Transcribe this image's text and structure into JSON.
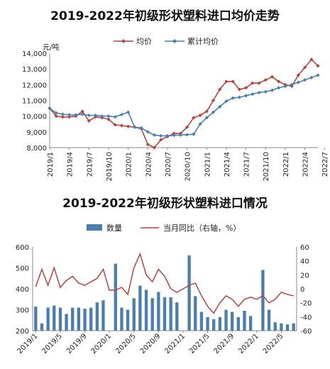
{
  "chart_data": [
    {
      "type": "line",
      "title": "2019-2022年初级形状塑料进口均价走势",
      "ylabel": "元/吨",
      "ylim": [
        8000,
        14000
      ],
      "yticks": [
        "8,000",
        "9,000",
        "10,000",
        "11,000",
        "12,000",
        "13,000",
        "14,000"
      ],
      "xtick_labels": [
        "2019/1",
        "2019/4",
        "2019/7",
        "2019/10",
        "2020/1",
        "2020/4",
        "2020/7",
        "2020/10",
        "2021/1",
        "2021/4",
        "2021/7",
        "2021/10",
        "2022/1",
        "2022/4",
        "2022/7"
      ],
      "series": [
        {
          "name": "均价",
          "color": "#b5443e",
          "values": [
            10500,
            10000,
            9950,
            9950,
            10000,
            10300,
            9700,
            9950,
            9900,
            9800,
            9450,
            9400,
            9350,
            9300,
            9200,
            8200,
            8000,
            8500,
            8700,
            8900,
            8900,
            9300,
            9900,
            10050,
            10300,
            11000,
            11700,
            12200,
            12200,
            11700,
            11800,
            12100,
            12100,
            12300,
            12500,
            12200,
            12000,
            11900,
            12600,
            13100,
            13600,
            13200
          ]
        },
        {
          "name": "累计均价",
          "color": "#4a7eb0",
          "values": [
            10500,
            10200,
            10120,
            10080,
            10080,
            10120,
            10050,
            10050,
            10000,
            10000,
            9950,
            10100,
            10250,
            9300,
            9250,
            9000,
            8800,
            8750,
            8750,
            8780,
            8800,
            8820,
            8850,
            9500,
            9900,
            10250,
            10600,
            10950,
            11150,
            11200,
            11300,
            11400,
            11500,
            11550,
            11650,
            11800,
            11900,
            12000,
            12150,
            12300,
            12450,
            12600
          ]
        }
      ]
    },
    {
      "type": "bar",
      "title": "2019-2022年初级形状塑料进口情况",
      "ylim": [
        200,
        600
      ],
      "yticks": [
        "200",
        "300",
        "400",
        "500",
        "600"
      ],
      "y2lim": [
        -60,
        60
      ],
      "y2ticks": [
        "60",
        "40",
        "20",
        "0",
        "-20",
        "-40",
        "-60"
      ],
      "xtick_labels": [
        "2019/1",
        "2019/5",
        "2019/9",
        "2020/1",
        "2020/5",
        "2020/9",
        "2021/1",
        "2021/5",
        "2021/9",
        "2022/1",
        "2022/5"
      ],
      "series": [
        {
          "name": "数量",
          "color": "#4a7eb0",
          "values": [
            315,
            235,
            310,
            320,
            310,
            280,
            310,
            310,
            305,
            310,
            335,
            345,
            0,
            520,
            310,
            300,
            355,
            415,
            395,
            355,
            385,
            360,
            360,
            335,
            0,
            560,
            365,
            290,
            265,
            255,
            265,
            300,
            290,
            265,
            295,
            270,
            0,
            490,
            300,
            240,
            235,
            230,
            235
          ]
        },
        {
          "name": "当月同比（右轴，%）",
          "color": "#b5443e",
          "values": [
            3,
            28,
            5,
            30,
            2,
            12,
            18,
            8,
            5,
            10,
            15,
            28,
            -2,
            -2,
            2,
            -8,
            30,
            50,
            20,
            10,
            28,
            18,
            0,
            -5,
            0,
            5,
            8,
            -10,
            -25,
            -35,
            -20,
            -10,
            -15,
            -25,
            -15,
            -12,
            -15,
            -10,
            -20,
            -15,
            -5,
            -8,
            -10
          ]
        }
      ]
    }
  ]
}
